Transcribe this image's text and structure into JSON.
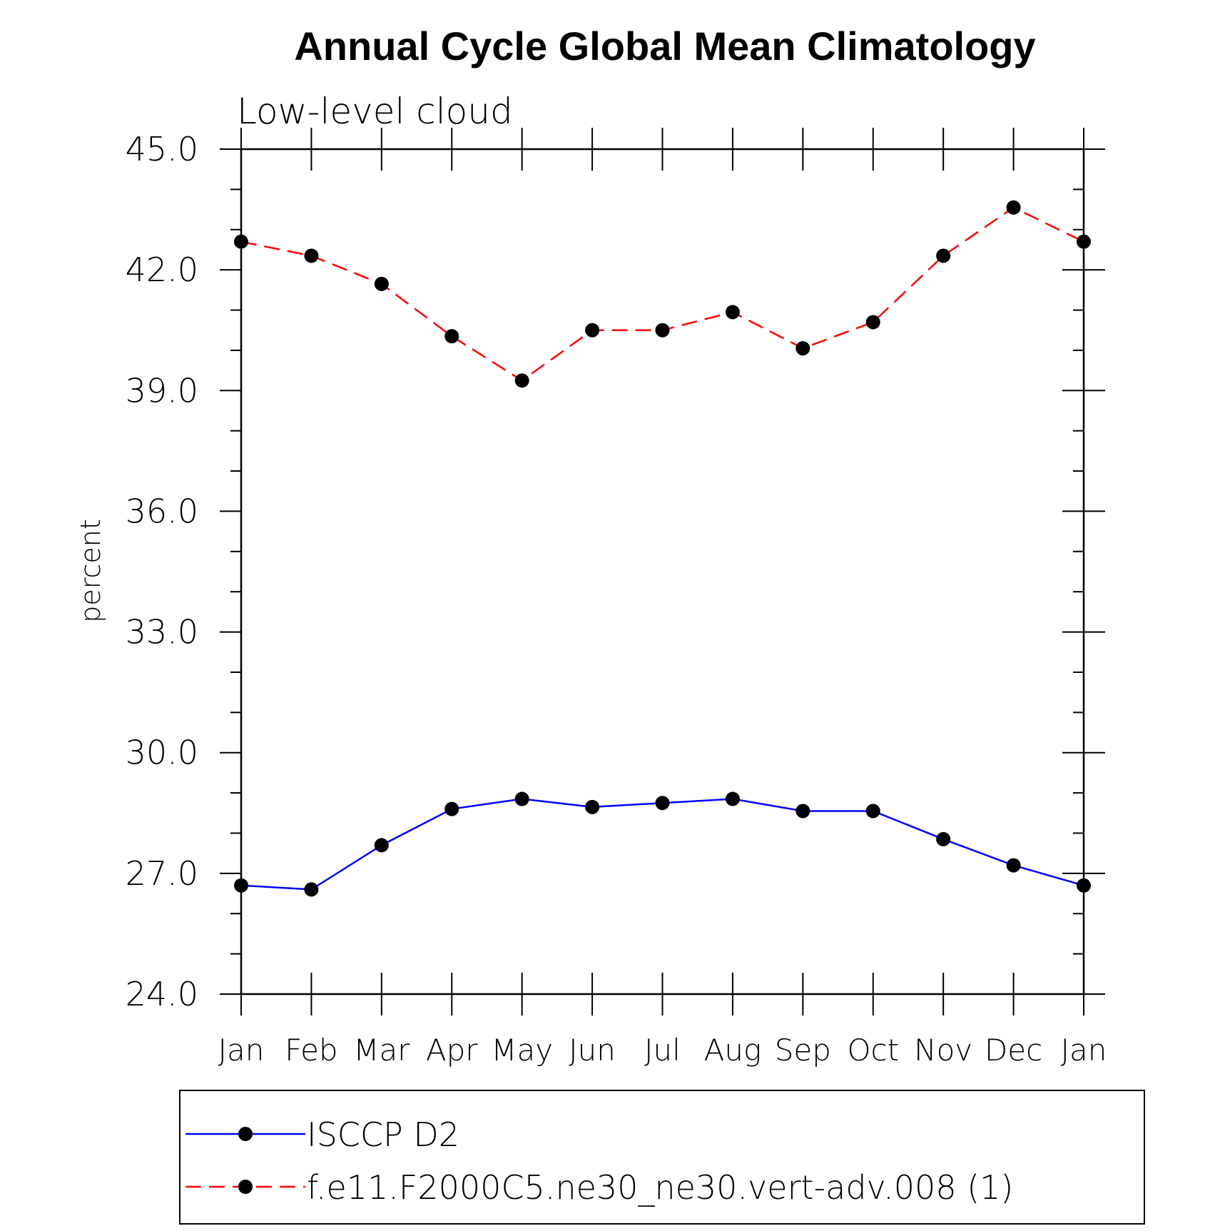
{
  "chart_data": {
    "type": "line",
    "title": "Annual Cycle Global Mean Climatology",
    "subtitle": "Low-level cloud",
    "ylabel": "percent",
    "xlabel": "",
    "ylim": [
      24.0,
      45.0
    ],
    "yticks": [
      "24.0",
      "27.0",
      "30.0",
      "33.0",
      "36.0",
      "39.0",
      "42.0",
      "45.0"
    ],
    "categories": [
      "Jan",
      "Feb",
      "Mar",
      "Apr",
      "May",
      "Jun",
      "Jul",
      "Aug",
      "Sep",
      "Oct",
      "Nov",
      "Dec",
      "Jan"
    ],
    "grid": false,
    "legend_position": "bottom",
    "series": [
      {
        "name": "ISCCP D2",
        "color": "#0000ff",
        "dash": "solid",
        "marker": "filled-circle",
        "values": [
          26.7,
          26.6,
          27.7,
          28.6,
          28.85,
          28.65,
          28.75,
          28.85,
          28.55,
          28.55,
          27.85,
          27.2,
          26.7
        ]
      },
      {
        "name": "f.e11.F2000C5.ne30_ne30.vert-adv.008 (1)",
        "color": "#ff0000",
        "dash": "dashed",
        "marker": "filled-circle",
        "values": [
          42.7,
          42.35,
          41.65,
          40.35,
          39.25,
          40.5,
          40.5,
          40.95,
          40.05,
          40.7,
          42.35,
          43.55,
          42.7
        ]
      }
    ]
  }
}
